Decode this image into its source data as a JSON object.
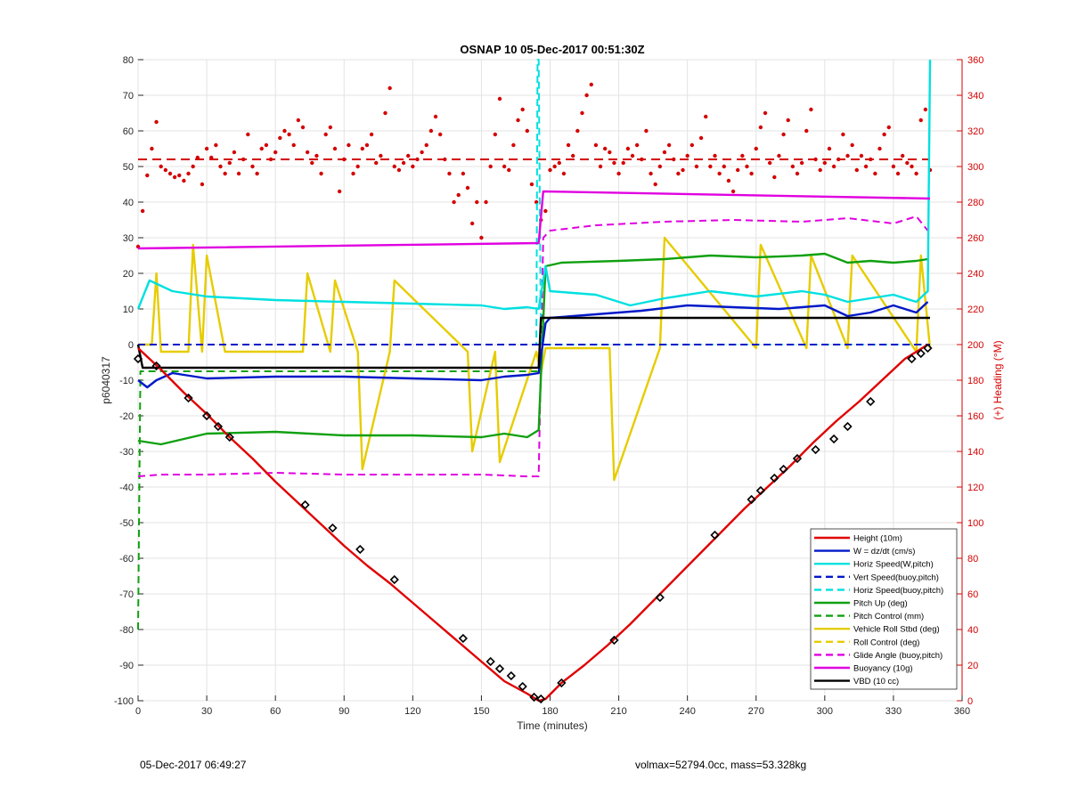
{
  "chart_data": {
    "type": "line",
    "title": "OSNAP 10 05-Dec-2017 00:51:30Z",
    "xlabel": "Time (minutes)",
    "ylabel": "p6040317",
    "ylabel_right": "(+) Heading (°M)",
    "xlim": [
      0,
      360
    ],
    "ylim": [
      -100,
      80
    ],
    "ylim_right": [
      0,
      360
    ],
    "xticks": [
      0,
      30,
      60,
      90,
      120,
      150,
      180,
      210,
      240,
      270,
      300,
      330,
      360
    ],
    "yticks": [
      -100,
      -90,
      -80,
      -70,
      -60,
      -50,
      -40,
      -30,
      -20,
      -10,
      0,
      10,
      20,
      30,
      40,
      50,
      60,
      70,
      80
    ],
    "yticks_right": [
      0,
      20,
      40,
      60,
      80,
      100,
      120,
      140,
      160,
      180,
      200,
      220,
      240,
      260,
      280,
      300,
      320,
      340,
      360
    ],
    "grid": true,
    "legend_position": "bottom-right",
    "right_axis_color": "#d40000",
    "series": [
      {
        "name": "Height (10m)",
        "color": "#e00000",
        "style": "solid",
        "x": [
          0,
          10,
          20,
          30,
          40,
          50,
          60,
          70,
          80,
          90,
          100,
          110,
          120,
          130,
          140,
          150,
          160,
          170,
          175,
          178,
          185,
          195,
          205,
          215,
          225,
          235,
          245,
          255,
          265,
          275,
          285,
          295,
          305,
          315,
          325,
          335,
          345
        ],
        "values": [
          -1,
          -7,
          -13.5,
          -19.5,
          -26,
          -32,
          -38.5,
          -44.5,
          -50.5,
          -56.5,
          -62,
          -67,
          -72.5,
          -78,
          -83.5,
          -89,
          -94.5,
          -98,
          -100,
          -99.5,
          -95,
          -90,
          -84.5,
          -78.5,
          -72,
          -65.5,
          -59,
          -52.5,
          -46,
          -40,
          -34,
          -27.5,
          -21.5,
          -16,
          -10,
          -4,
          0
        ]
      },
      {
        "name": "W = dz/dt (cm/s)",
        "color": "#0018c8",
        "style": "solid",
        "x": [
          0,
          4,
          8,
          15,
          30,
          60,
          90,
          120,
          150,
          160,
          170,
          175,
          178,
          180,
          200,
          220,
          240,
          260,
          280,
          300,
          310,
          320,
          330,
          340,
          345
        ],
        "values": [
          -10,
          -12,
          -10,
          -8,
          -9.5,
          -9,
          -9,
          -9.5,
          -10,
          -9,
          -8.5,
          -8,
          6,
          7.5,
          8.5,
          9.5,
          11,
          10.5,
          10,
          11,
          8,
          9,
          11,
          9,
          12
        ]
      },
      {
        "name": "Horiz Speed(W,pitch)",
        "color": "#00e0e0",
        "style": "solid",
        "x": [
          0,
          5,
          15,
          30,
          60,
          90,
          120,
          150,
          160,
          170,
          175,
          178,
          180,
          200,
          215,
          230,
          250,
          270,
          290,
          300,
          310,
          320,
          330,
          340,
          345,
          346
        ],
        "values": [
          10,
          18,
          15,
          13.5,
          12.5,
          12,
          11.5,
          11,
          10,
          10.5,
          10,
          22,
          15,
          14,
          11,
          13,
          15,
          13.5,
          15,
          14,
          12,
          13,
          14,
          12,
          15,
          80
        ]
      },
      {
        "name": "Vert Speed(buoy,pitch)",
        "color": "#0018c8",
        "style": "dash",
        "x": [
          0,
          175,
          176,
          346
        ],
        "values": [
          0,
          0,
          0,
          0
        ]
      },
      {
        "name": "Horiz Speed(buoy,pitch)",
        "color": "#00e0e0",
        "style": "dash",
        "x": [
          0,
          174,
          174.5,
          175,
          176,
          346
        ],
        "values": [
          0,
          0,
          80,
          80,
          0,
          0
        ]
      },
      {
        "name": "Pitch Up (deg)",
        "color": "#10a010",
        "style": "solid",
        "x": [
          0,
          10,
          30,
          60,
          90,
          120,
          150,
          160,
          170,
          175,
          178,
          185,
          210,
          230,
          250,
          270,
          290,
          300,
          310,
          320,
          330,
          340,
          345
        ],
        "values": [
          -27,
          -28,
          -25,
          -24.5,
          -25.5,
          -25.5,
          -26,
          -25,
          -26,
          -24,
          22,
          23,
          23.5,
          24,
          25,
          24.5,
          25,
          25.5,
          23,
          23.5,
          23,
          23.5,
          24
        ]
      },
      {
        "name": "Pitch Control (mm)",
        "color": "#10a010",
        "style": "dash",
        "x": [
          0,
          1,
          2,
          176,
          177,
          346
        ],
        "values": [
          -80,
          -7.5,
          -7.5,
          -7.5,
          7.5,
          7.5
        ]
      },
      {
        "name": "Vehicle Roll Stbd (deg)",
        "color": "#e6cc00",
        "style": "solid",
        "x": [
          0,
          6,
          8,
          10,
          22,
          24,
          28,
          30,
          38,
          40,
          72,
          74,
          84,
          86,
          96,
          98,
          110,
          112,
          144,
          146,
          156,
          158,
          174,
          176,
          178,
          180,
          206,
          208,
          228,
          230,
          270,
          272,
          292,
          294,
          310,
          312,
          340,
          342,
          346
        ],
        "values": [
          0,
          0,
          20,
          -2,
          -2,
          28,
          -2,
          25,
          -2,
          -2,
          -2,
          20,
          -2,
          18,
          -2,
          -35,
          -2,
          18,
          -2,
          -30,
          -2,
          -33,
          -2,
          -8,
          -1,
          -1,
          -1,
          -38,
          -1,
          30,
          -1,
          28,
          -1,
          25,
          -1,
          25,
          -2,
          25,
          -1
        ]
      },
      {
        "name": "Roll Control (deg)",
        "color": "#e6cc00",
        "style": "dash",
        "x": [
          0,
          346
        ],
        "values": [
          0,
          0
        ]
      },
      {
        "name": "Glide Angle (buoy,pitch)",
        "color": "#e000e0",
        "style": "dash",
        "x": [
          0,
          10,
          30,
          60,
          90,
          120,
          150,
          170,
          175,
          177,
          180,
          200,
          230,
          260,
          290,
          310,
          330,
          340,
          345
        ],
        "values": [
          -37,
          -36.5,
          -36.5,
          -36,
          -36.5,
          -36.5,
          -36.5,
          -37,
          -37,
          30,
          32,
          33.5,
          34.5,
          35,
          34.5,
          35.5,
          34,
          36,
          32
        ]
      },
      {
        "name": "Buoyancy (10g)",
        "color": "#e000e0",
        "style": "solid",
        "x": [
          0,
          175,
          177,
          346
        ],
        "values": [
          27,
          28.5,
          43,
          41
        ]
      },
      {
        "name": "VBD (10 cc)",
        "color": "#000000",
        "style": "solid",
        "x": [
          0,
          2,
          175,
          176,
          346
        ],
        "values": [
          0,
          -6.5,
          -6.5,
          7.5,
          7.5
        ]
      }
    ],
    "heading_series": {
      "name": "Heading",
      "color": "#d40000",
      "axis": "right",
      "mean": 304,
      "x": [
        0,
        2,
        4,
        6,
        8,
        10,
        12,
        14,
        16,
        18,
        20,
        22,
        24,
        26,
        28,
        30,
        32,
        34,
        36,
        38,
        40,
        42,
        44,
        46,
        48,
        50,
        52,
        54,
        56,
        58,
        60,
        62,
        64,
        66,
        68,
        70,
        72,
        74,
        76,
        78,
        80,
        82,
        84,
        86,
        88,
        90,
        92,
        94,
        96,
        98,
        100,
        102,
        104,
        106,
        108,
        110,
        112,
        114,
        116,
        118,
        120,
        122,
        124,
        126,
        128,
        130,
        132,
        134,
        136,
        138,
        140,
        142,
        144,
        146,
        148,
        150,
        152,
        154,
        156,
        158,
        160,
        162,
        164,
        166,
        168,
        170,
        172,
        174,
        176,
        178,
        180,
        182,
        184,
        186,
        188,
        190,
        192,
        194,
        196,
        198,
        200,
        202,
        204,
        206,
        208,
        210,
        212,
        214,
        216,
        218,
        220,
        222,
        224,
        226,
        228,
        230,
        232,
        234,
        236,
        238,
        240,
        242,
        244,
        246,
        248,
        250,
        252,
        254,
        256,
        258,
        260,
        262,
        264,
        266,
        268,
        270,
        272,
        274,
        276,
        278,
        280,
        282,
        284,
        286,
        288,
        290,
        292,
        294,
        296,
        298,
        300,
        302,
        304,
        306,
        308,
        310,
        312,
        314,
        316,
        318,
        320,
        322,
        324,
        326,
        328,
        330,
        332,
        334,
        336,
        338,
        340,
        342,
        344,
        346
      ],
      "values": [
        255,
        275,
        295,
        310,
        325,
        300,
        298,
        296,
        294,
        295,
        292,
        296,
        300,
        305,
        290,
        310,
        305,
        312,
        300,
        296,
        302,
        308,
        296,
        304,
        318,
        300,
        296,
        310,
        312,
        304,
        308,
        316,
        320,
        318,
        312,
        326,
        322,
        308,
        302,
        306,
        296,
        318,
        322,
        310,
        286,
        304,
        312,
        296,
        300,
        310,
        312,
        318,
        302,
        306,
        330,
        344,
        300,
        298,
        302,
        306,
        300,
        304,
        308,
        312,
        320,
        328,
        318,
        304,
        296,
        280,
        284,
        296,
        288,
        268,
        280,
        260,
        280,
        300,
        318,
        338,
        300,
        298,
        312,
        326,
        332,
        320,
        290,
        280,
        270,
        275,
        298,
        300,
        302,
        296,
        312,
        306,
        320,
        330,
        340,
        346,
        312,
        300,
        310,
        308,
        302,
        296,
        302,
        310,
        306,
        312,
        304,
        320,
        296,
        290,
        300,
        308,
        312,
        304,
        296,
        298,
        306,
        312,
        300,
        316,
        328,
        300,
        306,
        296,
        300,
        292,
        286,
        298,
        306,
        300,
        296,
        310,
        322,
        330,
        302,
        294,
        306,
        318,
        326,
        300,
        296,
        302,
        320,
        332,
        304,
        298,
        302,
        310,
        300,
        304,
        318,
        306,
        312,
        298,
        306,
        300,
        304,
        296,
        310,
        318,
        322,
        300,
        296,
        306,
        302,
        300,
        296,
        326,
        332,
        298
      ]
    },
    "markers": {
      "color": "#000000",
      "x": [
        0,
        8,
        22,
        30,
        35,
        40,
        73,
        85,
        97,
        112,
        142,
        154,
        158,
        163,
        168,
        173,
        176,
        185,
        208,
        228,
        252,
        268,
        272,
        278,
        282,
        288,
        296,
        304,
        310,
        320,
        338,
        342,
        345
      ],
      "values": [
        -4,
        -6,
        -15,
        -20,
        -23,
        -26,
        -45,
        -51.5,
        -57.5,
        -66,
        -82.5,
        -89,
        -91,
        -93,
        -96,
        -99,
        -99.5,
        -95,
        -83,
        -71,
        -53.5,
        -43.5,
        -41,
        -37.5,
        -35,
        -32,
        -29.5,
        -26.5,
        -23,
        -16,
        -4,
        -2.5,
        -1
      ]
    }
  },
  "footer": {
    "left": "05-Dec-2017 06:49:27",
    "right": "volmax=52794.0cc, mass=53.328kg"
  }
}
